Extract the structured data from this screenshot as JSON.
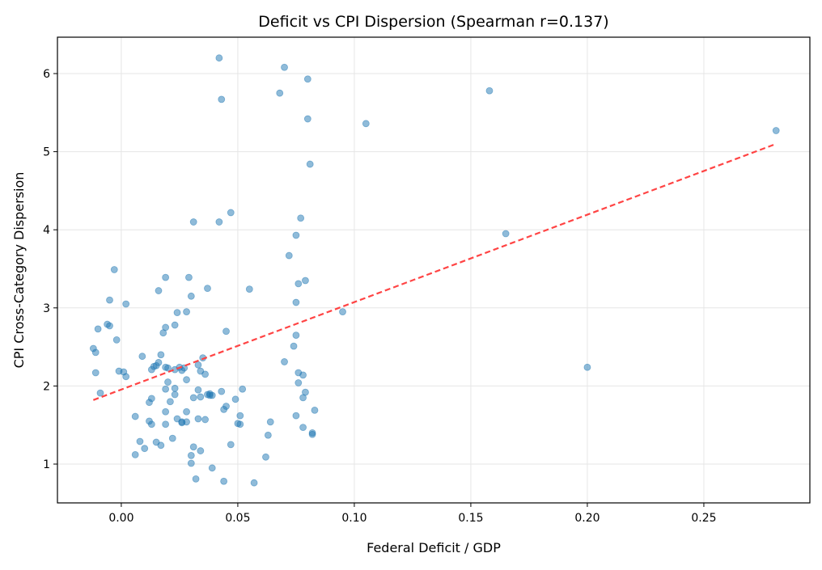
{
  "chart_data": {
    "type": "scatter",
    "title": "Deficit vs CPI Dispersion (Spearman r=0.137)",
    "xlabel": "Federal Deficit / GDP",
    "ylabel": "CPI Cross-Category Dispersion",
    "xlim": [
      -0.0274,
      0.2955
    ],
    "ylim": [
      0.503,
      6.466
    ],
    "xticks": [
      0.0,
      0.05,
      0.1,
      0.15,
      0.2,
      0.25
    ],
    "xtick_labels": [
      "0.00",
      "0.05",
      "0.10",
      "0.15",
      "0.20",
      "0.25"
    ],
    "yticks": [
      1,
      2,
      3,
      4,
      5,
      6
    ],
    "ytick_labels": [
      "1",
      "2",
      "3",
      "4",
      "5",
      "6"
    ],
    "grid": true,
    "colors": {
      "points": "#1f77b4",
      "trend": "#ff4444"
    },
    "trend_line": {
      "x": [
        -0.012,
        0.281
      ],
      "y": [
        1.82,
        5.1
      ],
      "style": "dashed"
    },
    "points": {
      "x": [
        0.042,
        0.07,
        0.08,
        0.068,
        0.043,
        0.158,
        0.08,
        0.105,
        0.281,
        0.081,
        0.047,
        0.031,
        0.042,
        0.077,
        0.075,
        0.165,
        0.072,
        -0.003,
        0.019,
        0.029,
        0.079,
        0.076,
        0.016,
        0.037,
        0.03,
        0.055,
        -0.005,
        0.002,
        0.075,
        0.095,
        0.024,
        0.028,
        0.023,
        -0.006,
        -0.005,
        0.045,
        0.075,
        -0.01,
        0.019,
        0.018,
        -0.002,
        0.074,
        -0.012,
        -0.011,
        0.009,
        0.017,
        0.035,
        0.07,
        0.033,
        0.016,
        0.027,
        0.019,
        0.02,
        0.025,
        0.023,
        0.026,
        0.034,
        0.013,
        0.015,
        0.014,
        -0.011,
        -0.001,
        0.001,
        0.002,
        0.036,
        0.076,
        0.078,
        0.02,
        0.076,
        0.028,
        0.019,
        0.023,
        0.052,
        0.043,
        -0.009,
        0.033,
        0.037,
        0.038,
        0.038,
        0.023,
        0.039,
        0.034,
        0.031,
        0.079,
        0.013,
        0.049,
        0.078,
        0.021,
        0.012,
        0.045,
        0.044,
        0.083,
        0.019,
        0.028,
        0.051,
        0.075,
        0.024,
        0.033,
        0.006,
        0.028,
        0.026,
        0.051,
        0.05,
        0.036,
        0.026,
        0.013,
        0.012,
        0.019,
        0.064,
        0.078,
        0.063,
        0.022,
        0.008,
        0.047,
        0.01,
        0.031,
        0.034,
        0.006,
        0.03,
        0.062,
        0.03,
        0.039,
        0.032,
        0.044,
        0.057,
        0.017,
        0.015,
        0.082,
        0.082,
        0.2
      ],
      "y": [
        6.2,
        6.08,
        5.93,
        5.75,
        5.67,
        5.78,
        5.42,
        5.36,
        5.27,
        4.84,
        4.22,
        4.1,
        4.1,
        4.15,
        3.93,
        3.95,
        3.67,
        3.49,
        3.39,
        3.39,
        3.35,
        3.31,
        3.22,
        3.25,
        3.15,
        3.24,
        3.1,
        3.05,
        3.07,
        2.95,
        2.94,
        2.95,
        2.78,
        2.79,
        2.77,
        2.7,
        2.65,
        2.73,
        2.75,
        2.68,
        2.59,
        2.51,
        2.48,
        2.43,
        2.38,
        2.4,
        2.36,
        2.31,
        2.27,
        2.3,
        2.23,
        2.24,
        2.23,
        2.24,
        2.21,
        2.2,
        2.19,
        2.21,
        2.26,
        2.25,
        2.17,
        2.19,
        2.18,
        2.12,
        2.15,
        2.17,
        2.14,
        2.05,
        2.04,
        2.08,
        1.96,
        1.97,
        1.96,
        1.93,
        1.91,
        1.95,
        1.89,
        1.88,
        1.9,
        1.89,
        1.88,
        1.86,
        1.85,
        1.92,
        1.84,
        1.83,
        1.85,
        1.8,
        1.79,
        1.74,
        1.7,
        1.69,
        1.67,
        1.67,
        1.62,
        1.62,
        1.58,
        1.58,
        1.61,
        1.54,
        1.53,
        1.51,
        1.52,
        1.57,
        1.54,
        1.51,
        1.55,
        1.51,
        1.54,
        1.47,
        1.37,
        1.33,
        1.29,
        1.25,
        1.2,
        1.22,
        1.17,
        1.12,
        1.11,
        1.09,
        1.01,
        0.95,
        0.81,
        0.78,
        0.76,
        1.24,
        1.28,
        1.4,
        1.38,
        2.24
      ]
    }
  }
}
